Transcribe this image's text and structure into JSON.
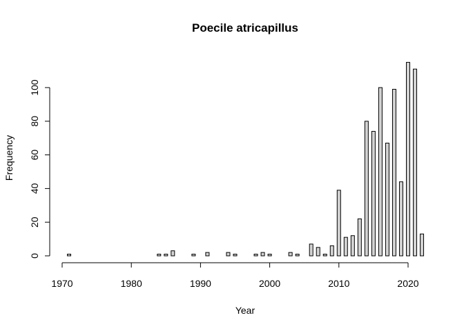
{
  "chart_data": {
    "type": "bar",
    "title": "Poecile atricapillus",
    "xlabel": "Year",
    "ylabel": "Frequency",
    "bar_color": "#d3d3d3",
    "border_color": "#000000",
    "x": [
      1971,
      1972,
      1973,
      1974,
      1975,
      1976,
      1977,
      1978,
      1979,
      1980,
      1981,
      1982,
      1983,
      1984,
      1985,
      1986,
      1987,
      1988,
      1989,
      1990,
      1991,
      1992,
      1993,
      1994,
      1995,
      1996,
      1997,
      1998,
      1999,
      2000,
      2001,
      2002,
      2003,
      2004,
      2005,
      2006,
      2007,
      2008,
      2009,
      2010,
      2011,
      2012,
      2013,
      2014,
      2015,
      2016,
      2017,
      2018,
      2019,
      2020,
      2021,
      2022
    ],
    "values": [
      1,
      0,
      0,
      0,
      0,
      0,
      0,
      0,
      0,
      0,
      0,
      0,
      0,
      1,
      1,
      3,
      0,
      0,
      1,
      0,
      2,
      0,
      0,
      2,
      1,
      0,
      0,
      1,
      2,
      1,
      0,
      0,
      2,
      1,
      0,
      7,
      5,
      1,
      6,
      39,
      11,
      12,
      22,
      80,
      74,
      100,
      67,
      99,
      44,
      115,
      111,
      13
    ],
    "xticks": [
      1970,
      1980,
      1990,
      2000,
      2010,
      2020
    ],
    "yticks": [
      0,
      20,
      40,
      60,
      80,
      100
    ],
    "xlim": [
      1969.5,
      2022.5
    ],
    "ylim": [
      0,
      120
    ]
  }
}
